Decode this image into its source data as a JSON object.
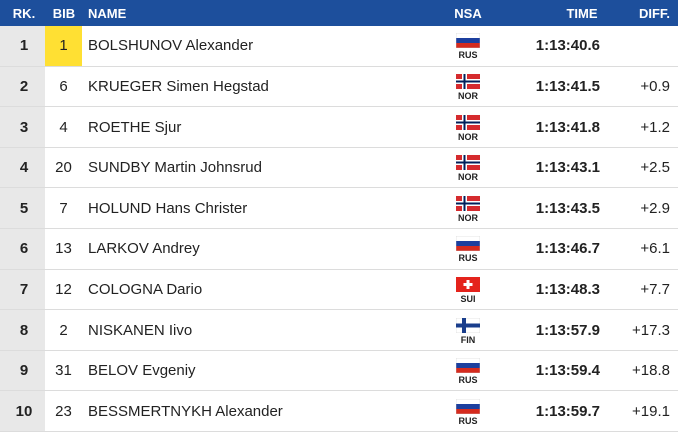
{
  "table": {
    "header": [
      "RK.",
      "BIB",
      "NAME",
      "NSA",
      "TIME",
      "DIFF."
    ],
    "rows": [
      {
        "rank": 1,
        "bib": 1,
        "name": "BOLSHUNOV Alexander",
        "nsa": "RUS",
        "time": "1:13:40.6"
      },
      {
        "rank": 2,
        "bib": 6,
        "name": "KRUEGER Simen Hegstad",
        "nsa": "NOR",
        "time": "1:13:41.5",
        "diff": "+0.9"
      },
      {
        "rank": 3,
        "bib": 4,
        "name": "ROETHE Sjur",
        "nsa": "NOR",
        "time": "1:13:41.8",
        "diff": "+1.2"
      },
      {
        "rank": 4,
        "bib": 20,
        "name": "SUNDBY Martin Johnsrud",
        "nsa": "NOR",
        "time": "1:13:43.1",
        "diff": "+2.5"
      },
      {
        "rank": 5,
        "bib": 7,
        "name": "HOLUND Hans Christer",
        "nsa": "NOR",
        "time": "1:13:43.5",
        "diff": "+2.9"
      },
      {
        "rank": 6,
        "bib": 13,
        "name": "LARKOV Andrey",
        "nsa": "RUS",
        "time": "1:13:46.7",
        "diff": "+6.1"
      },
      {
        "rank": 7,
        "bib": 12,
        "name": "COLOGNA Dario",
        "nsa": "SUI",
        "time": "1:13:48.3",
        "diff": "+7.7"
      },
      {
        "rank": 8,
        "bib": 2,
        "name": "NISKANEN Iivo",
        "nsa": "FIN",
        "time": "1:13:57.9",
        "diff": "+17.3"
      },
      {
        "rank": 9,
        "bib": 31,
        "name": "BELOV Evgeniy",
        "nsa": "RUS",
        "time": "1:13:59.4",
        "diff": "+18.8"
      },
      {
        "rank": 10,
        "bib": 23,
        "name": "BESSMERTNYKH Alexander",
        "nsa": "RUS",
        "time": "1:13:59.7",
        "diff": "+19.1"
      }
    ]
  }
}
